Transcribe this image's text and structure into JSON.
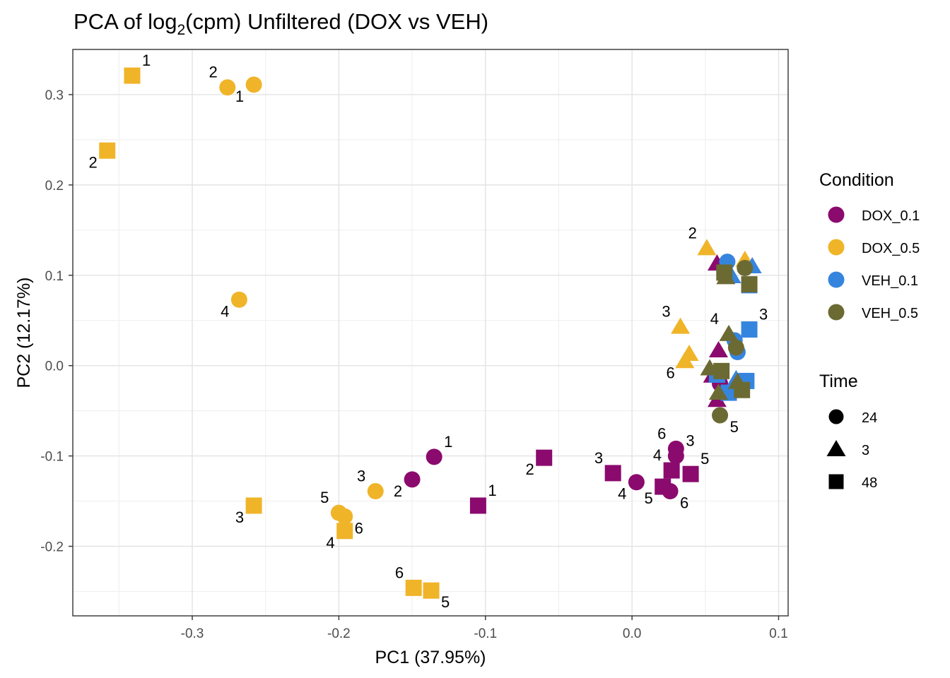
{
  "chart_data": {
    "type": "scatter",
    "title_main": "PCA of log",
    "title_sub": "2",
    "title_tail": "(cpm) Unfiltered (DOX vs VEH)",
    "xlabel": "PC1 (37.95%)",
    "ylabel": "PC2 (12.17%)",
    "xlim": [
      -0.3815,
      0.1065
    ],
    "ylim": [
      -0.277,
      0.35
    ],
    "xticks": [
      -0.3,
      -0.2,
      -0.1,
      0.0,
      0.1
    ],
    "xtick_labels": [
      "-0.3",
      "-0.2",
      "-0.1",
      "0.0",
      "0.1"
    ],
    "yticks": [
      -0.2,
      -0.1,
      0.0,
      0.1,
      0.2,
      0.3
    ],
    "ytick_labels": [
      "-0.2",
      "-0.1",
      "0.0",
      "0.1",
      "0.2",
      "0.3"
    ],
    "grid": true,
    "colors": {
      "DOX_0.1": "#8b0a6e",
      "DOX_0.5": "#f0b429",
      "VEH_0.1": "#3585df",
      "VEH_0.5": "#6c6a33"
    },
    "legend_condition": {
      "title": "Condition",
      "entries": [
        "DOX_0.1",
        "DOX_0.5",
        "VEH_0.1",
        "VEH_0.5"
      ]
    },
    "legend_time": {
      "title": "Time",
      "entries": [
        {
          "label": "24",
          "shape": "circle"
        },
        {
          "label": "3",
          "shape": "triangle"
        },
        {
          "label": "48",
          "shape": "square"
        }
      ]
    },
    "points": [
      {
        "x": -0.341,
        "y": 0.321,
        "condition": "DOX_0.5",
        "time": "48",
        "label": "1",
        "lpos": "ne"
      },
      {
        "x": -0.358,
        "y": 0.238,
        "condition": "DOX_0.5",
        "time": "48",
        "label": "2",
        "lpos": "sw"
      },
      {
        "x": -0.258,
        "y": -0.155,
        "condition": "DOX_0.5",
        "time": "48",
        "label": "3",
        "lpos": "sw"
      },
      {
        "x": -0.196,
        "y": -0.183,
        "condition": "DOX_0.5",
        "time": "48",
        "label": "4",
        "lpos": "sw"
      },
      {
        "x": -0.137,
        "y": -0.249,
        "condition": "DOX_0.5",
        "time": "48",
        "label": "5",
        "lpos": "se"
      },
      {
        "x": -0.149,
        "y": -0.246,
        "condition": "DOX_0.5",
        "time": "48",
        "label": "6",
        "lpos": "nw"
      },
      {
        "x": -0.258,
        "y": 0.311,
        "condition": "DOX_0.5",
        "time": "24",
        "label": "1",
        "lpos": "sw"
      },
      {
        "x": -0.276,
        "y": 0.308,
        "condition": "DOX_0.5",
        "time": "24",
        "label": "2",
        "lpos": "nw"
      },
      {
        "x": -0.175,
        "y": -0.139,
        "condition": "DOX_0.5",
        "time": "24",
        "label": "3",
        "lpos": "nw"
      },
      {
        "x": -0.268,
        "y": 0.073,
        "condition": "DOX_0.5",
        "time": "24",
        "label": "4",
        "lpos": "sw"
      },
      {
        "x": -0.2,
        "y": -0.163,
        "condition": "DOX_0.5",
        "time": "24",
        "label": "5",
        "lpos": "nw"
      },
      {
        "x": -0.196,
        "y": -0.167,
        "condition": "DOX_0.5",
        "time": "24",
        "label": "6",
        "lpos": "se"
      },
      {
        "x": 0.051,
        "y": 0.13,
        "condition": "DOX_0.5",
        "time": "3",
        "label": "2",
        "lpos": "nw"
      },
      {
        "x": 0.033,
        "y": 0.043,
        "condition": "DOX_0.5",
        "time": "3",
        "label": "3",
        "lpos": "nw"
      },
      {
        "x": 0.039,
        "y": 0.013,
        "condition": "DOX_0.5",
        "time": "3",
        "label": "",
        "lpos": "ne"
      },
      {
        "x": 0.036,
        "y": 0.005,
        "condition": "DOX_0.5",
        "time": "3",
        "label": "6",
        "lpos": "sw"
      },
      {
        "x": 0.077,
        "y": 0.117,
        "condition": "DOX_0.5",
        "time": "3",
        "label": "",
        "lpos": "ne"
      },
      {
        "x": -0.135,
        "y": -0.101,
        "condition": "DOX_0.1",
        "time": "24",
        "label": "1",
        "lpos": "ne"
      },
      {
        "x": -0.15,
        "y": -0.126,
        "condition": "DOX_0.1",
        "time": "24",
        "label": "2",
        "lpos": "sw"
      },
      {
        "x": 0.003,
        "y": -0.129,
        "condition": "DOX_0.1",
        "time": "24",
        "label": "4",
        "lpos": "sw"
      },
      {
        "x": 0.026,
        "y": -0.139,
        "condition": "DOX_0.1",
        "time": "24",
        "label": "6",
        "lpos": "se"
      },
      {
        "x": 0.03,
        "y": -0.092,
        "condition": "DOX_0.1",
        "time": "24",
        "label": "6",
        "lpos": "nw"
      },
      {
        "x": 0.03,
        "y": -0.1,
        "condition": "DOX_0.1",
        "time": "24",
        "label": "3",
        "lpos": "ne"
      },
      {
        "x": -0.105,
        "y": -0.155,
        "condition": "DOX_0.1",
        "time": "48",
        "label": "1",
        "lpos": "ne"
      },
      {
        "x": -0.06,
        "y": -0.102,
        "condition": "DOX_0.1",
        "time": "48",
        "label": "2",
        "lpos": "sw"
      },
      {
        "x": -0.013,
        "y": -0.119,
        "condition": "DOX_0.1",
        "time": "48",
        "label": "3",
        "lpos": "nw"
      },
      {
        "x": 0.027,
        "y": -0.116,
        "condition": "DOX_0.1",
        "time": "48",
        "label": "4",
        "lpos": "nw"
      },
      {
        "x": 0.021,
        "y": -0.134,
        "condition": "DOX_0.1",
        "time": "48",
        "label": "5",
        "lpos": "sw"
      },
      {
        "x": 0.04,
        "y": -0.12,
        "condition": "DOX_0.1",
        "time": "48",
        "label": "5",
        "lpos": "ne"
      },
      {
        "x": 0.058,
        "y": 0.113,
        "condition": "DOX_0.1",
        "time": "3",
        "label": "",
        "lpos": "ne"
      },
      {
        "x": 0.059,
        "y": 0.017,
        "condition": "DOX_0.1",
        "time": "3",
        "label": "",
        "lpos": "ne"
      },
      {
        "x": 0.055,
        "y": -0.011,
        "condition": "DOX_0.1",
        "time": "3",
        "label": "",
        "lpos": "ne"
      },
      {
        "x": 0.058,
        "y": -0.038,
        "condition": "DOX_0.1",
        "time": "3",
        "label": "",
        "lpos": "ne"
      },
      {
        "x": 0.06,
        "y": -0.02,
        "condition": "DOX_0.1",
        "time": "24",
        "label": "",
        "lpos": "ne"
      },
      {
        "x": 0.065,
        "y": 0.115,
        "condition": "VEH_0.1",
        "time": "24",
        "label": "",
        "lpos": "ne"
      },
      {
        "x": 0.07,
        "y": 0.028,
        "condition": "VEH_0.1",
        "time": "24",
        "label": "",
        "lpos": "ne"
      },
      {
        "x": 0.072,
        "y": 0.015,
        "condition": "VEH_0.1",
        "time": "24",
        "label": "",
        "lpos": "ne"
      },
      {
        "x": 0.082,
        "y": 0.11,
        "condition": "VEH_0.1",
        "time": "3",
        "label": "",
        "lpos": "ne"
      },
      {
        "x": 0.068,
        "y": 0.099,
        "condition": "VEH_0.1",
        "time": "3",
        "label": "",
        "lpos": "ne"
      },
      {
        "x": 0.08,
        "y": 0.089,
        "condition": "VEH_0.1",
        "time": "48",
        "label": "",
        "lpos": "ne"
      },
      {
        "x": 0.08,
        "y": 0.04,
        "condition": "VEH_0.1",
        "time": "48",
        "label": "3",
        "lpos": "ne"
      },
      {
        "x": 0.078,
        "y": -0.017,
        "condition": "VEH_0.1",
        "time": "48",
        "label": "",
        "lpos": "ne"
      },
      {
        "x": 0.066,
        "y": -0.03,
        "condition": "VEH_0.1",
        "time": "48",
        "label": "",
        "lpos": "ne"
      },
      {
        "x": 0.058,
        "y": -0.01,
        "condition": "VEH_0.1",
        "time": "48",
        "label": "",
        "lpos": "ne"
      },
      {
        "x": 0.071,
        "y": -0.015,
        "condition": "VEH_0.1",
        "time": "3",
        "label": "",
        "lpos": "ne"
      },
      {
        "x": 0.077,
        "y": 0.108,
        "condition": "VEH_0.5",
        "time": "24",
        "label": "",
        "lpos": "ne"
      },
      {
        "x": 0.071,
        "y": 0.02,
        "condition": "VEH_0.5",
        "time": "24",
        "label": "",
        "lpos": "ne"
      },
      {
        "x": 0.06,
        "y": -0.055,
        "condition": "VEH_0.5",
        "time": "24",
        "label": "5",
        "lpos": "se"
      },
      {
        "x": 0.063,
        "y": 0.103,
        "condition": "VEH_0.5",
        "time": "48",
        "label": "",
        "lpos": "ne"
      },
      {
        "x": 0.08,
        "y": 0.09,
        "condition": "VEH_0.5",
        "time": "48",
        "label": "",
        "lpos": "ne"
      },
      {
        "x": 0.061,
        "y": -0.006,
        "condition": "VEH_0.5",
        "time": "48",
        "label": "",
        "lpos": "ne"
      },
      {
        "x": 0.075,
        "y": -0.027,
        "condition": "VEH_0.5",
        "time": "48",
        "label": "",
        "lpos": "ne"
      },
      {
        "x": 0.064,
        "y": 0.098,
        "condition": "VEH_0.5",
        "time": "3",
        "label": "",
        "lpos": "ne"
      },
      {
        "x": 0.066,
        "y": 0.035,
        "condition": "VEH_0.5",
        "time": "3",
        "label": "4",
        "lpos": "nw"
      },
      {
        "x": 0.053,
        "y": -0.003,
        "condition": "VEH_0.5",
        "time": "3",
        "label": "",
        "lpos": "ne"
      },
      {
        "x": 0.072,
        "y": -0.018,
        "condition": "VEH_0.5",
        "time": "3",
        "label": "",
        "lpos": "ne"
      },
      {
        "x": 0.059,
        "y": -0.03,
        "condition": "VEH_0.5",
        "time": "3",
        "label": "",
        "lpos": "ne"
      }
    ]
  }
}
